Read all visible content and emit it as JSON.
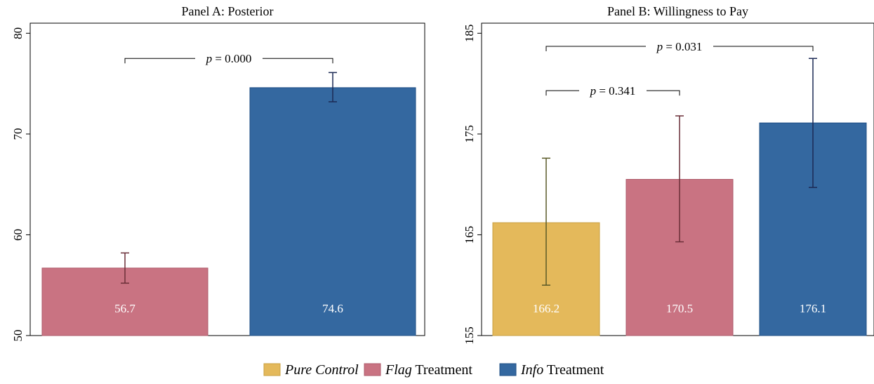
{
  "colors": {
    "control": "#e4b95b",
    "control_edge": "#c9a040",
    "flag": "#c97382",
    "flag_edge": "#ad5a69",
    "info": "#3468a0",
    "info_edge": "#1f4f86",
    "err_control": "#5a5a28",
    "err_flag": "#6a2f38",
    "err_info": "#1c2a55"
  },
  "legend": {
    "entries": [
      {
        "italic": "Pure Control",
        "plain": "",
        "color_key": "control"
      },
      {
        "italic": "Flag",
        "plain": " Treatment",
        "color_key": "flag"
      },
      {
        "italic": "Info",
        "plain": " Treatment",
        "color_key": "info"
      }
    ]
  },
  "chart_data": [
    {
      "type": "bar",
      "title": "Panel A: Posterior",
      "ylim": [
        50,
        81
      ],
      "yticks": [
        50,
        60,
        70,
        80
      ],
      "grid": false,
      "bars": [
        {
          "group": "Flag Treatment",
          "value": 56.7,
          "label": "56.7",
          "err_low": 55.2,
          "err_high": 58.2,
          "color_key": "flag"
        },
        {
          "group": "Info Treatment",
          "value": 74.6,
          "label": "74.6",
          "err_low": 73.2,
          "err_high": 76.1,
          "color_key": "info"
        }
      ],
      "comparisons": [
        {
          "from": 0,
          "to": 1,
          "y": 77.5,
          "label_italic": "p",
          "label_rest": " = 0.000"
        }
      ]
    },
    {
      "type": "bar",
      "title": "Panel B: Willingness to Pay",
      "ylim": [
        155,
        186
      ],
      "yticks": [
        155,
        165,
        175,
        185
      ],
      "grid": false,
      "bars": [
        {
          "group": "Pure Control",
          "value": 166.2,
          "label": "166.2",
          "err_low": 160.0,
          "err_high": 172.6,
          "color_key": "control"
        },
        {
          "group": "Flag Treatment",
          "value": 170.5,
          "label": "170.5",
          "err_low": 164.3,
          "err_high": 176.8,
          "color_key": "flag"
        },
        {
          "group": "Info Treatment",
          "value": 176.1,
          "label": "176.1",
          "err_low": 169.7,
          "err_high": 182.5,
          "color_key": "info"
        }
      ],
      "comparisons": [
        {
          "from": 0,
          "to": 2,
          "y": 183.7,
          "label_italic": "p",
          "label_rest": " = 0.031"
        },
        {
          "from": 0,
          "to": 1,
          "y": 179.3,
          "label_italic": "p",
          "label_rest": " = 0.341"
        }
      ]
    }
  ]
}
